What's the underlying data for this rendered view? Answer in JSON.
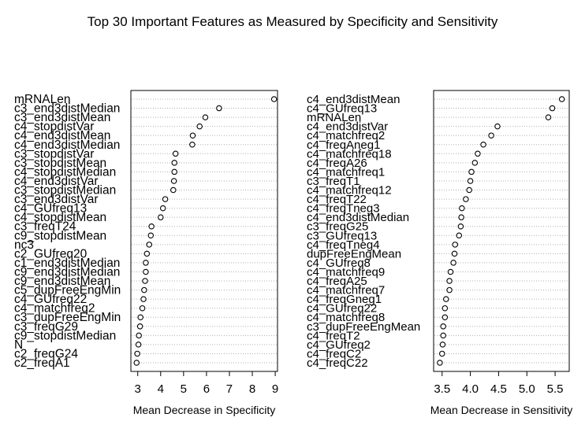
{
  "title": "Top 30 Important Features as Measured by Specificity and Sensitivity",
  "chart_data": [
    {
      "type": "scatter",
      "subtype": "dotchart",
      "xlabel": "Mean Decrease in Specificity",
      "xlim": [
        2.7,
        9.1
      ],
      "xticks": [
        3,
        4,
        5,
        6,
        7,
        8,
        9
      ],
      "grid": "dotted horizontal",
      "categories": [
        "mRNALen",
        "c3_end3distMedian",
        "c3_end3distMean",
        "c4_stopdistVar",
        "c4_end3distMean",
        "c4_end3distMedian",
        "c3_stopdistVar",
        "c3_stopdistMean",
        "c4_stopdistMedian",
        "c4_end3distVar",
        "c3_stopdistMedian",
        "c3_end3distVar",
        "c4_GUfreq13",
        "c4_stopdistMean",
        "c3_freqT24",
        "c9_stopdistMean",
        "nc3",
        "c2_GUfreq20",
        "c1_end3distMedian",
        "c9_end3distMedian",
        "c9_end3distMean",
        "c5_dupFreeEngMin",
        "c4_GUfreq22",
        "c4_matchfreq2",
        "c3_dupFreeEngMin",
        "c3_freqG29",
        "c9_stopdistMedian",
        "N",
        "c2_freqG24",
        "c2_freqA1"
      ],
      "values": [
        8.95,
        6.55,
        5.95,
        5.7,
        5.4,
        5.38,
        4.65,
        4.6,
        4.6,
        4.58,
        4.55,
        4.2,
        4.1,
        4.0,
        3.6,
        3.57,
        3.5,
        3.4,
        3.35,
        3.35,
        3.32,
        3.28,
        3.25,
        3.2,
        3.12,
        3.1,
        3.05,
        3.03,
        2.98,
        2.95
      ]
    },
    {
      "type": "scatter",
      "subtype": "dotchart",
      "xlabel": "Mean Decrease in Sensitivity",
      "xlim": [
        3.35,
        5.75
      ],
      "xticks": [
        3.5,
        4.0,
        4.5,
        5.0,
        5.5
      ],
      "grid": "dotted horizontal",
      "categories": [
        "c4_end3distMean",
        "c4_GUfreq13",
        "mRNALen",
        "c4_end3distVar",
        "c4_matchfreq2",
        "c4_freqAneg1",
        "c4_matchfreq18",
        "c4_freqA26",
        "c4_matchfreq1",
        "c3_freqT1",
        "c4_matchfreq12",
        "c4_freqT22",
        "c4_freqTneg3",
        "c4_end3distMedian",
        "c3_freqG25",
        "c3_GUfreq13",
        "c4_freqTneg4",
        "dupFreeEngMean",
        "c4_GUfreq8",
        "c4_matchfreq9",
        "c4_freqA25",
        "c4_matchfreq7",
        "c4_freqGneg1",
        "c4_GUfreq22",
        "c4_matchfreq8",
        "c3_dupFreeEngMean",
        "c4_freqT2",
        "c4_GUfreq2",
        "c4_freqC2",
        "c4_freqC22"
      ],
      "values": [
        5.62,
        5.45,
        5.38,
        4.48,
        4.37,
        4.23,
        4.13,
        4.08,
        4.02,
        4.0,
        3.98,
        3.92,
        3.85,
        3.84,
        3.83,
        3.8,
        3.73,
        3.72,
        3.7,
        3.65,
        3.63,
        3.63,
        3.57,
        3.55,
        3.55,
        3.52,
        3.52,
        3.51,
        3.5,
        3.46
      ]
    }
  ]
}
